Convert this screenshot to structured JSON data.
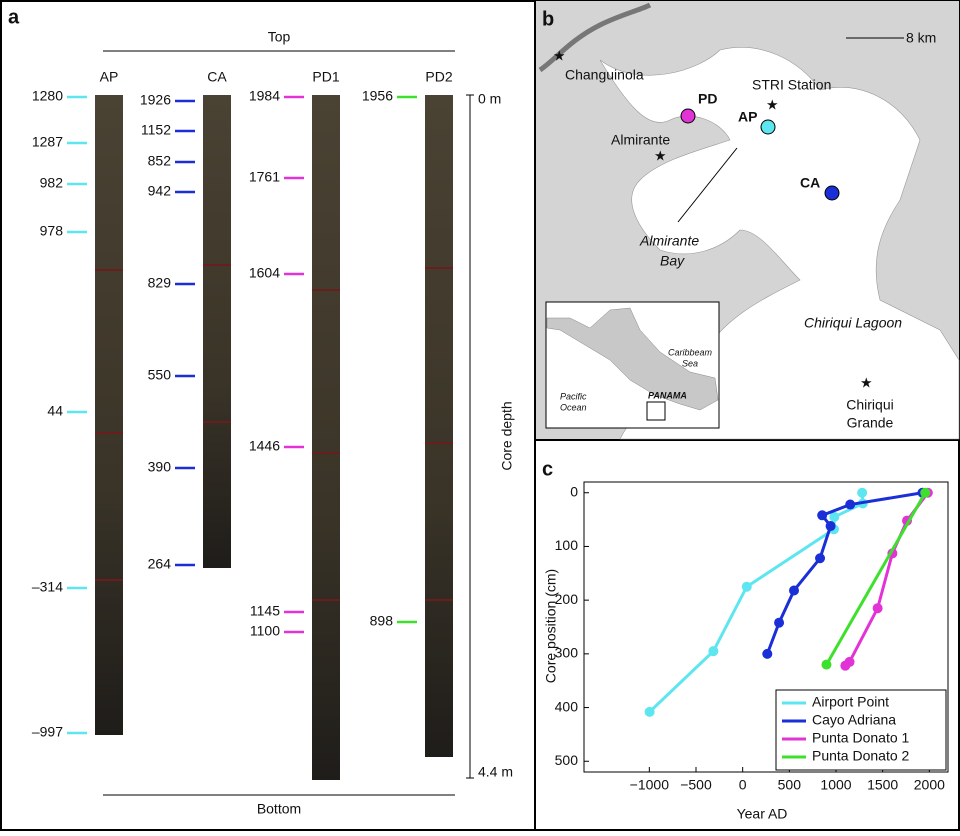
{
  "panel_a": {
    "letter": "a",
    "top": "Top",
    "bottom": "Bottom",
    "depth_top": "0 m",
    "depth_bottom": "4.4 m",
    "depth_label": "Core depth",
    "cores": [
      {
        "name": "AP",
        "color": "#5ee6f0",
        "labels": [
          "1280",
          "1287",
          "982",
          "978",
          "44",
          "–314",
          "–997"
        ]
      },
      {
        "name": "CA",
        "color": "#1a2fd6",
        "labels": [
          "1926",
          "1152",
          "852",
          "942",
          "829",
          "550",
          "390",
          "264"
        ]
      },
      {
        "name": "PD1",
        "color": "#e233d6",
        "labels": [
          "1984",
          "1761",
          "1604",
          "1446",
          "1145",
          "1100"
        ]
      },
      {
        "name": "PD2",
        "color": "#3de02a",
        "labels": [
          "1956",
          "898"
        ]
      }
    ]
  },
  "panel_b": {
    "letter": "b",
    "scale": "8 km",
    "places": [
      "Changuinola",
      "STRI Station",
      "Almirante",
      "Almirante",
      "Bay",
      "Chiriqui Lagoon",
      "Chiriqui",
      "Grande"
    ],
    "sites": [
      "PD",
      "AP",
      "CA"
    ],
    "inset": [
      "Caribbeam",
      "Sea",
      "Pacific",
      "Ocean",
      "PANAMA"
    ]
  },
  "chart_data": {
    "type": "line",
    "letter": "c",
    "xlabel": "Year AD",
    "ylabel": "Core position (cm)",
    "xlim": [
      -1700,
      2200
    ],
    "ylim": [
      -20,
      520
    ],
    "y_inverted": true,
    "xticks": [
      {
        "value": -1000,
        "label": "−1000"
      },
      {
        "value": -500,
        "label": "−500"
      },
      0,
      500,
      1000,
      1500,
      2000
    ],
    "yticks": [
      0,
      100,
      200,
      300,
      400,
      500
    ],
    "legend": "lower right",
    "series": [
      {
        "name": "Airport Point",
        "color": "#5ee6f0",
        "x": [
          1280,
          1287,
          982,
          978,
          44,
          -314,
          -997
        ],
        "values": [
          0,
          20,
          45,
          68,
          175,
          295,
          408
        ]
      },
      {
        "name": "Cayo Adriana",
        "color": "#1a2fd6",
        "x": [
          1926,
          1152,
          852,
          942,
          829,
          550,
          390,
          264
        ],
        "values": [
          0,
          22,
          42,
          62,
          122,
          182,
          242,
          300
        ]
      },
      {
        "name": "Punta Donato 1",
        "color": "#e233d6",
        "x": [
          1984,
          1761,
          1604,
          1446,
          1145,
          1100
        ],
        "values": [
          0,
          52,
          113,
          215,
          315,
          322
        ]
      },
      {
        "name": "Punta Donato 2",
        "color": "#3de02a",
        "x": [
          1956,
          898
        ],
        "values": [
          0,
          320
        ]
      }
    ]
  }
}
